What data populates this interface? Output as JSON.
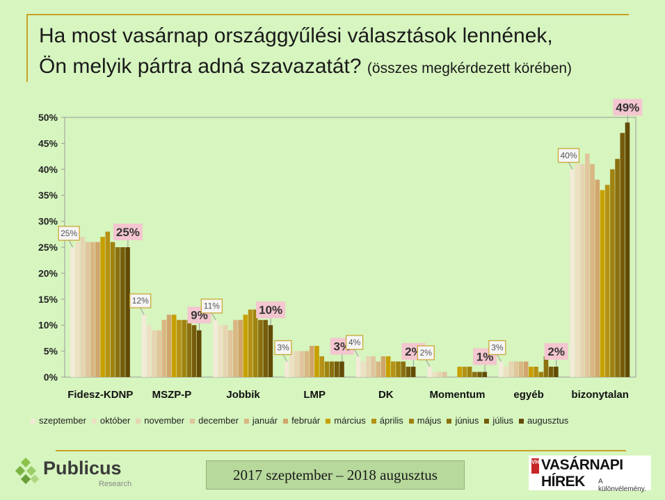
{
  "title": {
    "line1": "Ha most vasárnap országgyűlési választások lennének,",
    "line2": "Ön melyik pártra adná szavazatát?",
    "subtitle": "(összes megkérdezett körében)"
  },
  "period": "2017 szeptember – 2018 augusztus",
  "logos": {
    "publicus": "Publicus",
    "publicus_sub": "Research",
    "vh_mark": "VH",
    "vasarnapi": "VASÁRNAPI HÍREK",
    "vasarnapi_tag": "A különvélemény."
  },
  "chart_data": {
    "type": "bar",
    "ylim": [
      0,
      50
    ],
    "y_ticks": [
      "0%",
      "5%",
      "10%",
      "15%",
      "20%",
      "25%",
      "30%",
      "35%",
      "40%",
      "45%",
      "50%"
    ],
    "grid": false,
    "legend_position": "bottom",
    "categories": [
      "Fidesz-KDNP",
      "MSZP-P",
      "Jobbik",
      "LMP",
      "DK",
      "Momentum",
      "egyéb",
      "bizonytalan"
    ],
    "series": [
      {
        "name": "szeptember",
        "color": "#f3ead8",
        "values": [
          25,
          12,
          11,
          3,
          4,
          2,
          3,
          40
        ]
      },
      {
        "name": "október",
        "color": "#ede0c4",
        "values": [
          26,
          10,
          10,
          5,
          3,
          1,
          2,
          41
        ]
      },
      {
        "name": "november",
        "color": "#e7d4b2",
        "values": [
          27,
          9,
          10,
          5,
          4,
          1,
          3,
          41
        ]
      },
      {
        "name": "december",
        "color": "#e0c59d",
        "values": [
          26,
          9,
          9,
          5,
          4,
          1,
          3,
          43
        ]
      },
      {
        "name": "január",
        "color": "#d9b683",
        "values": [
          26,
          11,
          11,
          5,
          3,
          0,
          3,
          41
        ]
      },
      {
        "name": "február",
        "color": "#d1a56c",
        "values": [
          26,
          12,
          11,
          6,
          4,
          0,
          3,
          38
        ]
      },
      {
        "name": "március",
        "color": "#c7a000",
        "values": [
          27,
          12,
          12,
          6,
          4,
          2,
          2,
          36
        ]
      },
      {
        "name": "április",
        "color": "#b59115",
        "values": [
          28,
          11,
          13,
          4,
          3,
          2,
          2,
          37
        ]
      },
      {
        "name": "május",
        "color": "#a08210",
        "values": [
          26,
          11,
          13,
          3,
          3,
          2,
          1,
          40
        ]
      },
      {
        "name": "június",
        "color": "#8b6f10",
        "values": [
          25,
          11,
          11,
          3,
          3,
          1,
          4,
          42
        ]
      },
      {
        "name": "július",
        "color": "#765c0c",
        "values": [
          25,
          10,
          11,
          3,
          2,
          1,
          2,
          47
        ]
      },
      {
        "name": "augusztus",
        "color": "#634b06",
        "values": [
          25,
          9,
          10,
          3,
          2,
          1,
          2,
          49
        ]
      }
    ],
    "first_labels": [
      "25%",
      "12%",
      "11%",
      "3%",
      "4%",
      "2%",
      "3%",
      "40%"
    ],
    "last_labels": [
      "25%",
      "9%",
      "10%",
      "3%",
      "2%",
      "1%",
      "2%",
      "49%"
    ]
  }
}
